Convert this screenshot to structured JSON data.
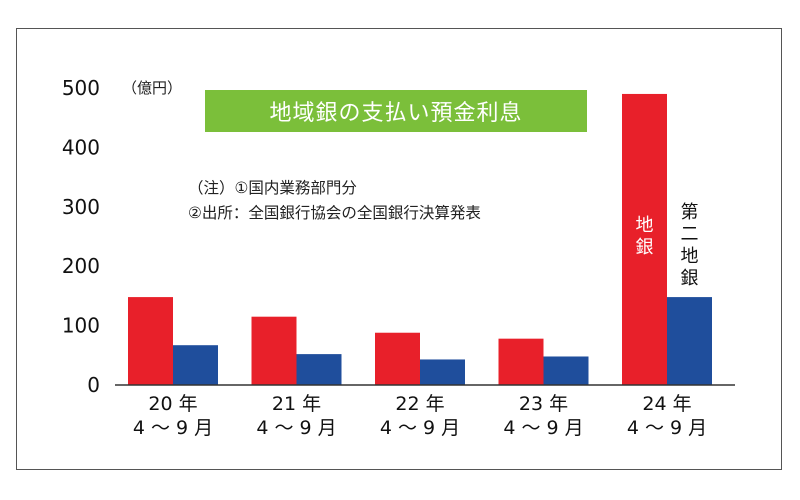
{
  "chart_data": {
    "type": "bar",
    "title": "地域銀の支払い預金利息",
    "unit_label": "（億円）",
    "notes": [
      "（注）①国内業務部門分",
      "②出所：全国銀行協会の全国銀行決算発表"
    ],
    "categories": [
      {
        "line1": "20 年",
        "line2": "4 〜 9 月"
      },
      {
        "line1": "21 年",
        "line2": "4 〜 9 月"
      },
      {
        "line1": "22 年",
        "line2": "4 〜 9 月"
      },
      {
        "line1": "23 年",
        "line2": "4 〜 9 月"
      },
      {
        "line1": "24 年",
        "line2": "4 〜 9 月"
      }
    ],
    "series": [
      {
        "name": "地銀",
        "color": "#e8202a",
        "values": [
          148,
          115,
          88,
          78,
          490
        ]
      },
      {
        "name": "第二地銀",
        "color": "#1f4e9c",
        "values": [
          67,
          52,
          43,
          48,
          148
        ]
      }
    ],
    "ylim": [
      0,
      500
    ],
    "yticks": [
      "0",
      "100",
      "200",
      "300",
      "400",
      "500"
    ],
    "title_bg": "#7bbf3a",
    "legend": "inline-labels"
  }
}
